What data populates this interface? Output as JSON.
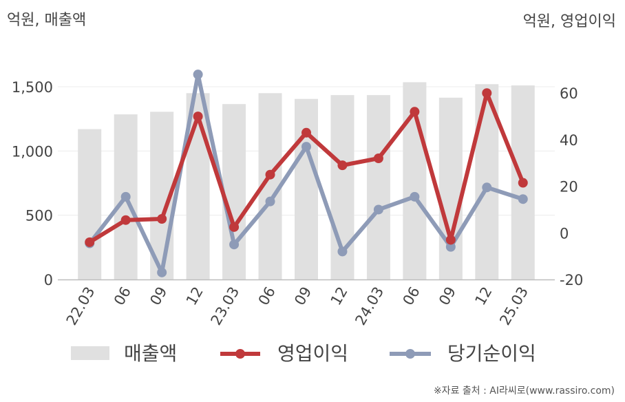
{
  "chart_data": {
    "type": "bar+line",
    "categories": [
      "22.03",
      "06",
      "09",
      "12",
      "23.03",
      "06",
      "09",
      "12",
      "24.03",
      "06",
      "09",
      "12",
      "25.03"
    ],
    "series": [
      {
        "name": "매출액",
        "type": "bar",
        "axis": "left",
        "values": [
          1170,
          1285,
          1305,
          1450,
          1365,
          1450,
          1405,
          1435,
          1435,
          1535,
          1415,
          1520,
          1510
        ]
      },
      {
        "name": "영업이익",
        "type": "line",
        "axis": "right",
        "values": [
          -4,
          5.5,
          6,
          50,
          2.5,
          25,
          43,
          29,
          32,
          52,
          -3,
          60,
          21.5
        ]
      },
      {
        "name": "당기순이익",
        "type": "line",
        "axis": "right",
        "values": [
          -4.5,
          15.5,
          -17,
          68,
          -5,
          13.5,
          37,
          -8,
          10,
          15.5,
          -6,
          19.5,
          14.5
        ]
      }
    ],
    "left_axis": {
      "unit": "억원, 매출액",
      "ticks": [
        "0",
        "500",
        "1,000",
        "1,500"
      ],
      "tick_values": [
        0,
        500,
        1000,
        1500
      ],
      "range": [
        0,
        1650
      ]
    },
    "right_axis": {
      "unit": "억원, 영업이익",
      "ticks": [
        "-20",
        "0",
        "20",
        "40",
        "60"
      ],
      "tick_values": [
        -20,
        0,
        20,
        40,
        60
      ],
      "range": [
        -20,
        71
      ]
    },
    "grid": true,
    "legend_position": "bottom",
    "colors": {
      "bar": "#e0e0e0",
      "op_profit": "#c0393b",
      "net_income": "#8e9bb7"
    },
    "source": "※자료 출처 : AI라씨로(www.rassiro.com)"
  }
}
